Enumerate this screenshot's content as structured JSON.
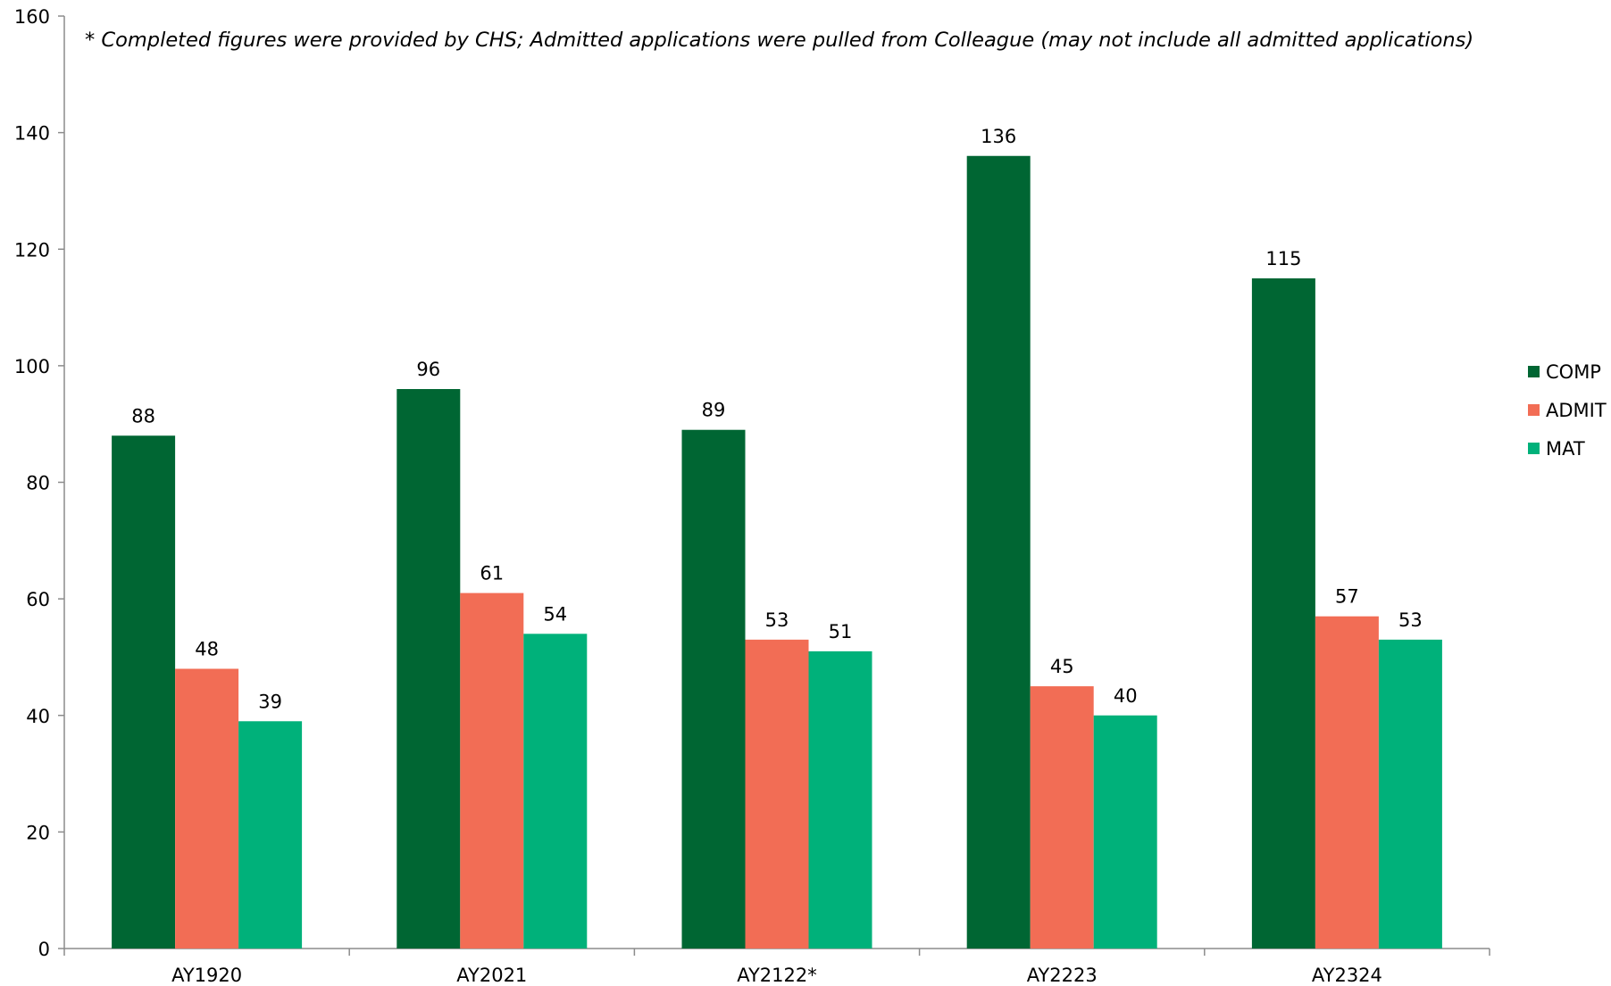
{
  "chart_data": {
    "type": "bar",
    "note": "* Completed figures were provided by CHS; Admitted applications were pulled from Colleague (may not include all admitted applications)",
    "categories": [
      "AY1920",
      "AY2021",
      "AY2122*",
      "AY2223",
      "AY2324"
    ],
    "series": [
      {
        "name": "COMP",
        "color": "#006633",
        "values": [
          88,
          96,
          89,
          136,
          115
        ]
      },
      {
        "name": "ADMIT",
        "color": "#f26d55",
        "values": [
          48,
          61,
          53,
          45,
          57
        ]
      },
      {
        "name": "MAT",
        "color": "#00b17a",
        "values": [
          39,
          54,
          51,
          40,
          53
        ]
      }
    ],
    "yticks": [
      0,
      20,
      40,
      60,
      80,
      100,
      120,
      140,
      160
    ],
    "ylim": [
      0,
      160
    ],
    "grid": false,
    "data_labels": true,
    "legend_position": "right"
  }
}
